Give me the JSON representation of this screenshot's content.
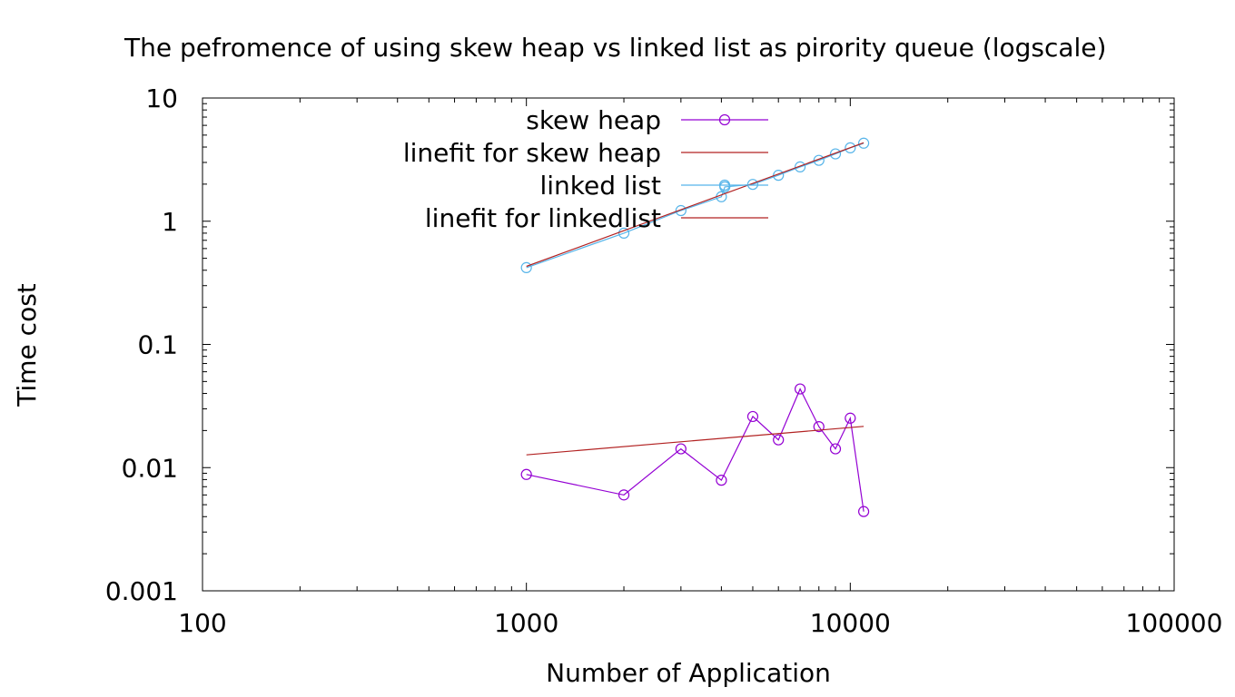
{
  "chart_data": {
    "type": "line",
    "title": "The pefromence of using skew heap vs linked list as pirority queue (logscale)",
    "xlabel": "Number of Application",
    "ylabel": "Time cost",
    "xscale": "log",
    "yscale": "log",
    "xlim": [
      100,
      100000
    ],
    "ylim": [
      0.001,
      10
    ],
    "xticks": [
      "100",
      "1000",
      "10000",
      "100000"
    ],
    "yticks": [
      "0.001",
      "0.01",
      "0.1",
      "1",
      "10"
    ],
    "grid": false,
    "legend_position": "top-center",
    "series": [
      {
        "name": "skew heap",
        "color": "#9400d3",
        "style": "linespoints",
        "marker": "circle",
        "x": [
          1000,
          2000,
          3000,
          4000,
          5000,
          6000,
          7000,
          8000,
          9000,
          10000,
          11000
        ],
        "y": [
          0.0088,
          0.006,
          0.0142,
          0.0079,
          0.026,
          0.0168,
          0.0435,
          0.0215,
          0.0142,
          0.0252,
          0.0044
        ]
      },
      {
        "name": "linefit for skew heap",
        "color": "#b22222",
        "style": "lines",
        "x": [
          1000,
          11000
        ],
        "y": [
          0.0127,
          0.0216
        ]
      },
      {
        "name": "linked list",
        "color": "#56b4e9",
        "style": "linespoints",
        "marker": "circle",
        "x": [
          1000,
          2000,
          3000,
          4000,
          4100,
          5000,
          6000,
          7000,
          8000,
          9000,
          10000,
          11000
        ],
        "y": [
          0.42,
          0.8,
          1.22,
          1.58,
          1.9,
          1.99,
          2.36,
          2.76,
          3.12,
          3.52,
          3.94,
          4.3
        ]
      },
      {
        "name": "linefit for linkedlist",
        "color": "#b22222",
        "style": "lines",
        "x": [
          1000,
          11000
        ],
        "y": [
          0.43,
          4.33
        ]
      }
    ]
  }
}
